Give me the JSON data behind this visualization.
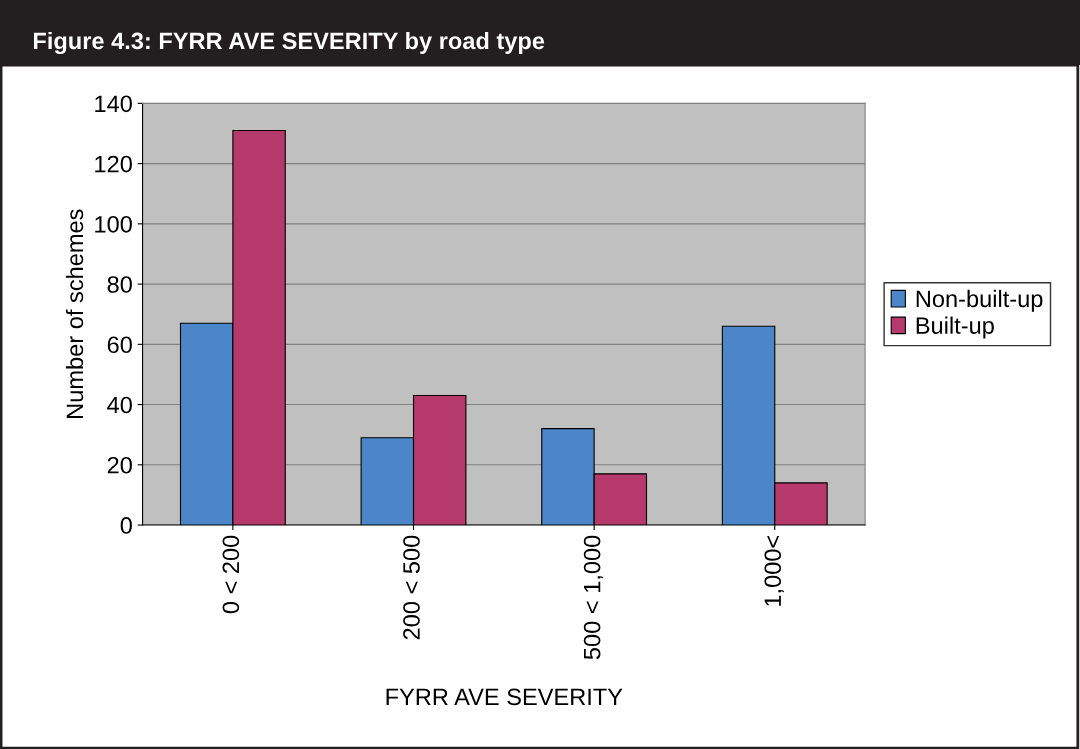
{
  "chart_data": {
    "type": "bar",
    "title": "Figure 4.3: FYRR AVE SEVERITY by road type",
    "xlabel": "FYRR AVE SEVERITY",
    "ylabel": "Number of schemes",
    "categories": [
      "0 < 200",
      "200 < 500",
      "500 < 1,000",
      "1,000<"
    ],
    "series": [
      {
        "name": "Non-built-up",
        "color": "#4a86c8",
        "values": [
          67,
          29,
          32,
          66
        ]
      },
      {
        "name": "Built-up",
        "color": "#b5396b",
        "values": [
          131,
          43,
          17,
          14
        ]
      }
    ],
    "ylim": [
      0,
      140
    ],
    "yticks": [
      0,
      20,
      40,
      60,
      80,
      100,
      120,
      140
    ],
    "grid": "y",
    "legend": "right"
  }
}
